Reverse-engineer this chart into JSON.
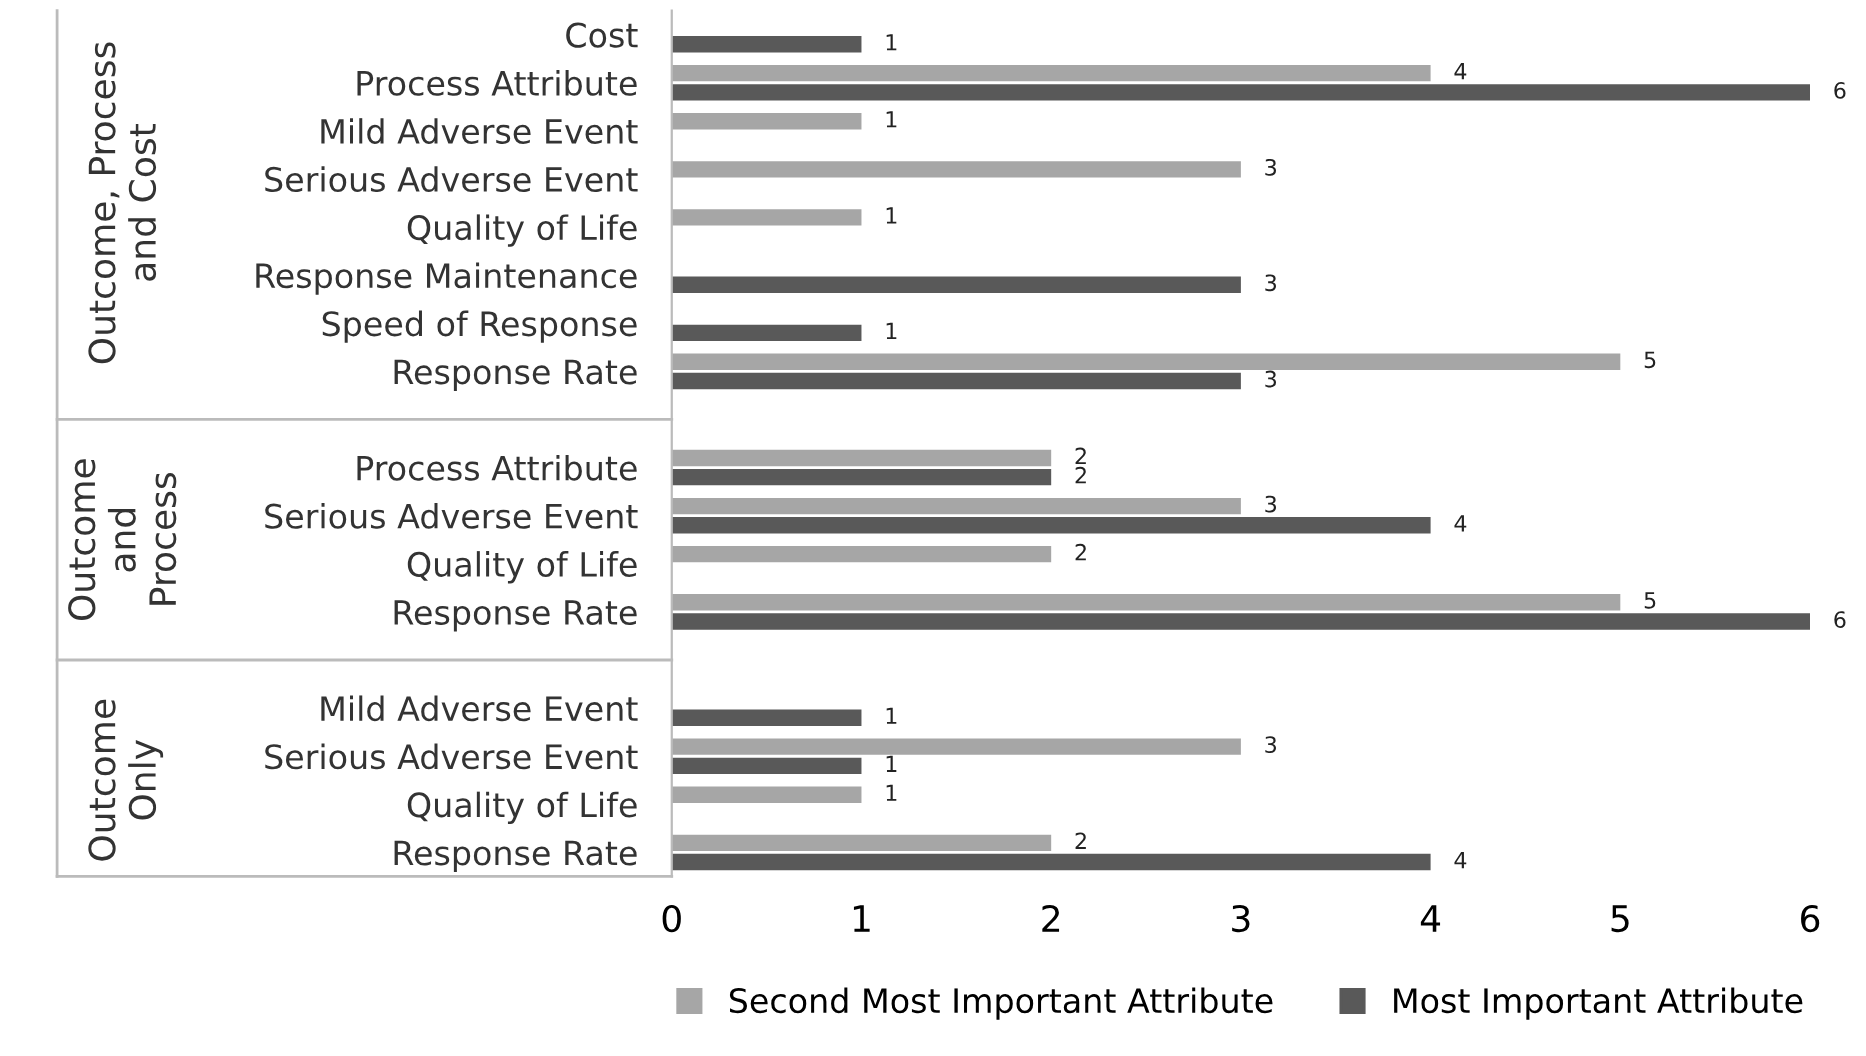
{
  "chart_data": {
    "type": "bar",
    "orientation": "horizontal",
    "categories": [
      "Cost",
      "Process Attribute",
      "Mild Adverse Event",
      "Serious Adverse Event",
      "Quality of Life",
      "Response Maintenance",
      "Speed of Response",
      "Response Rate",
      null,
      "Process Attribute",
      "Serious Adverse Event",
      "Quality of Life",
      "Response Rate",
      null,
      "Mild Adverse Event",
      "Serious Adverse Event",
      "Quality of Life",
      "Response Rate"
    ],
    "series": [
      {
        "name": "Second Most Important Attribute",
        "color": "#a6a6a6",
        "values": [
          null,
          4,
          1,
          3,
          1,
          null,
          null,
          5,
          null,
          2,
          3,
          2,
          5,
          null,
          null,
          3,
          1,
          2
        ]
      },
      {
        "name": "Most Important Attribute",
        "color": "#595959",
        "values": [
          1,
          6,
          null,
          null,
          null,
          3,
          1,
          3,
          null,
          2,
          4,
          null,
          6,
          null,
          1,
          1,
          null,
          4
        ]
      }
    ],
    "annotations": [
      "Outcome, Process\nand Cost",
      "Outcome\nand\nProcess",
      "Outcome\nOnly"
    ],
    "xlim": [
      0,
      6
    ],
    "xticks": [
      0,
      1,
      2,
      3,
      4,
      5,
      6
    ],
    "data_labels": true,
    "legend": "bottom",
    "grid": false
  }
}
